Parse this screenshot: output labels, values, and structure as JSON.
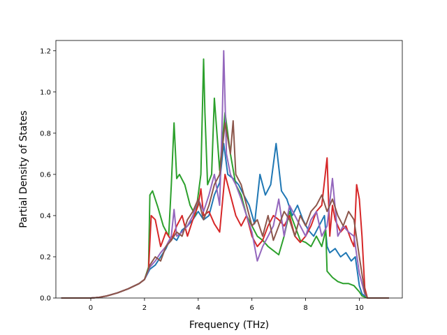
{
  "chart_data": {
    "type": "line",
    "title": "",
    "xlabel": "Frequency (THz)",
    "ylabel": "Partial Density of States",
    "xlim": [
      -1.3,
      11.6
    ],
    "ylim": [
      0.0,
      1.25
    ],
    "xticks": [
      0,
      2,
      4,
      6,
      8,
      10
    ],
    "xtick_labels": [
      "0",
      "2",
      "4",
      "6",
      "8",
      "10"
    ],
    "yticks": [
      0.0,
      0.2,
      0.4,
      0.6,
      0.8,
      1.0,
      1.2
    ],
    "ytick_labels": [
      "0.0",
      "0.2",
      "0.4",
      "0.6",
      "0.8",
      "1.0",
      "1.2"
    ],
    "grid": false,
    "legend": "none",
    "series": [
      {
        "color": "#1f77b4",
        "x": [
          -1.1,
          0.0,
          0.3,
          0.6,
          1.0,
          1.4,
          1.8,
          2.0,
          2.2,
          2.4,
          2.6,
          2.8,
          3.0,
          3.2,
          3.4,
          3.6,
          3.8,
          4.0,
          4.2,
          4.4,
          4.6,
          4.8,
          4.95,
          5.1,
          5.3,
          5.5,
          5.7,
          5.9,
          6.1,
          6.3,
          6.5,
          6.7,
          6.9,
          7.1,
          7.3,
          7.5,
          7.7,
          7.9,
          8.1,
          8.3,
          8.5,
          8.7,
          8.8,
          8.9,
          9.1,
          9.3,
          9.5,
          9.7,
          9.85,
          10.0,
          10.1,
          10.3,
          11.1
        ],
        "y": [
          0.0,
          0.0,
          0.003,
          0.01,
          0.025,
          0.045,
          0.07,
          0.09,
          0.14,
          0.16,
          0.2,
          0.24,
          0.3,
          0.28,
          0.33,
          0.35,
          0.38,
          0.42,
          0.38,
          0.4,
          0.5,
          0.56,
          0.75,
          0.6,
          0.58,
          0.55,
          0.5,
          0.45,
          0.36,
          0.6,
          0.5,
          0.55,
          0.75,
          0.52,
          0.48,
          0.4,
          0.45,
          0.38,
          0.33,
          0.3,
          0.35,
          0.4,
          0.25,
          0.22,
          0.24,
          0.2,
          0.22,
          0.18,
          0.2,
          0.06,
          0.02,
          0.0,
          0.0
        ]
      },
      {
        "color": "#2ca02c",
        "x": [
          -1.1,
          0.0,
          0.3,
          0.6,
          1.0,
          1.4,
          1.8,
          2.0,
          2.15,
          2.2,
          2.3,
          2.5,
          2.7,
          2.9,
          3.0,
          3.1,
          3.2,
          3.3,
          3.5,
          3.7,
          3.9,
          4.1,
          4.2,
          4.25,
          4.35,
          4.5,
          4.6,
          4.8,
          5.0,
          5.2,
          5.4,
          5.6,
          5.8,
          6.0,
          6.2,
          6.4,
          6.6,
          6.8,
          7.0,
          7.2,
          7.4,
          7.6,
          7.8,
          8.0,
          8.2,
          8.4,
          8.6,
          8.75,
          8.8,
          9.0,
          9.2,
          9.4,
          9.6,
          9.8,
          10.0,
          10.1,
          10.3,
          11.1
        ],
        "y": [
          0.0,
          0.0,
          0.003,
          0.01,
          0.025,
          0.045,
          0.07,
          0.09,
          0.15,
          0.5,
          0.52,
          0.44,
          0.35,
          0.3,
          0.55,
          0.85,
          0.58,
          0.6,
          0.55,
          0.45,
          0.4,
          0.6,
          1.16,
          0.9,
          0.55,
          0.6,
          0.97,
          0.62,
          0.9,
          0.7,
          0.55,
          0.5,
          0.4,
          0.35,
          0.3,
          0.28,
          0.25,
          0.23,
          0.21,
          0.3,
          0.42,
          0.35,
          0.28,
          0.27,
          0.25,
          0.3,
          0.25,
          0.33,
          0.13,
          0.1,
          0.08,
          0.07,
          0.07,
          0.06,
          0.03,
          0.01,
          0.0,
          0.0
        ]
      },
      {
        "color": "#d62728",
        "x": [
          -1.1,
          0.0,
          0.3,
          0.6,
          1.0,
          1.4,
          1.8,
          2.0,
          2.15,
          2.25,
          2.4,
          2.6,
          2.8,
          3.0,
          3.2,
          3.4,
          3.6,
          3.8,
          4.0,
          4.1,
          4.2,
          4.4,
          4.6,
          4.8,
          5.0,
          5.2,
          5.4,
          5.6,
          5.8,
          6.0,
          6.2,
          6.4,
          6.6,
          6.8,
          7.0,
          7.2,
          7.4,
          7.6,
          7.8,
          8.0,
          8.2,
          8.4,
          8.6,
          8.8,
          8.9,
          9.0,
          9.1,
          9.3,
          9.5,
          9.7,
          9.8,
          9.9,
          10.0,
          10.1,
          10.2,
          10.3,
          11.1
        ],
        "y": [
          0.0,
          0.0,
          0.003,
          0.01,
          0.025,
          0.045,
          0.07,
          0.09,
          0.14,
          0.4,
          0.38,
          0.25,
          0.32,
          0.28,
          0.35,
          0.4,
          0.3,
          0.38,
          0.45,
          0.53,
          0.4,
          0.42,
          0.36,
          0.32,
          0.6,
          0.5,
          0.4,
          0.35,
          0.4,
          0.3,
          0.25,
          0.28,
          0.35,
          0.4,
          0.38,
          0.35,
          0.4,
          0.3,
          0.27,
          0.3,
          0.35,
          0.42,
          0.45,
          0.68,
          0.3,
          0.45,
          0.38,
          0.32,
          0.35,
          0.28,
          0.25,
          0.55,
          0.48,
          0.3,
          0.05,
          0.0,
          0.0
        ]
      },
      {
        "color": "#9467bd",
        "x": [
          -1.1,
          0.0,
          0.3,
          0.6,
          1.0,
          1.4,
          1.8,
          2.0,
          2.2,
          2.4,
          2.6,
          2.8,
          3.0,
          3.1,
          3.2,
          3.4,
          3.6,
          3.8,
          4.0,
          4.2,
          4.4,
          4.6,
          4.8,
          4.9,
          4.95,
          5.05,
          5.2,
          5.4,
          5.6,
          5.8,
          6.0,
          6.2,
          6.4,
          6.6,
          6.8,
          7.0,
          7.2,
          7.4,
          7.6,
          7.8,
          8.0,
          8.2,
          8.4,
          8.6,
          8.8,
          9.0,
          9.2,
          9.4,
          9.6,
          9.8,
          10.0,
          10.2,
          10.3,
          11.1
        ],
        "y": [
          0.0,
          0.0,
          0.003,
          0.01,
          0.025,
          0.045,
          0.07,
          0.09,
          0.15,
          0.18,
          0.22,
          0.25,
          0.3,
          0.43,
          0.3,
          0.32,
          0.35,
          0.4,
          0.48,
          0.42,
          0.5,
          0.6,
          0.45,
          0.9,
          1.2,
          0.7,
          0.6,
          0.55,
          0.48,
          0.4,
          0.32,
          0.18,
          0.25,
          0.3,
          0.35,
          0.48,
          0.3,
          0.45,
          0.4,
          0.35,
          0.3,
          0.38,
          0.42,
          0.3,
          0.35,
          0.58,
          0.3,
          0.35,
          0.32,
          0.3,
          0.12,
          0.02,
          0.0,
          0.0
        ]
      },
      {
        "color": "#8c564b",
        "x": [
          -1.1,
          0.0,
          0.3,
          0.6,
          1.0,
          1.4,
          1.8,
          2.0,
          2.2,
          2.4,
          2.6,
          2.8,
          3.0,
          3.2,
          3.4,
          3.6,
          3.8,
          4.0,
          4.2,
          4.4,
          4.6,
          4.8,
          5.0,
          5.2,
          5.3,
          5.4,
          5.6,
          5.8,
          6.0,
          6.2,
          6.4,
          6.6,
          6.8,
          7.0,
          7.2,
          7.4,
          7.6,
          7.8,
          8.0,
          8.2,
          8.4,
          8.6,
          8.8,
          9.0,
          9.2,
          9.4,
          9.6,
          9.8,
          10.0,
          10.2,
          10.3,
          11.1
        ],
        "y": [
          0.0,
          0.0,
          0.003,
          0.01,
          0.025,
          0.045,
          0.07,
          0.09,
          0.16,
          0.2,
          0.18,
          0.25,
          0.28,
          0.32,
          0.3,
          0.38,
          0.42,
          0.48,
          0.38,
          0.45,
          0.55,
          0.6,
          0.85,
          0.7,
          0.86,
          0.6,
          0.55,
          0.45,
          0.35,
          0.38,
          0.3,
          0.4,
          0.28,
          0.35,
          0.42,
          0.38,
          0.3,
          0.4,
          0.35,
          0.42,
          0.45,
          0.5,
          0.42,
          0.48,
          0.4,
          0.35,
          0.42,
          0.38,
          0.2,
          0.03,
          0.0,
          0.0
        ]
      }
    ]
  }
}
